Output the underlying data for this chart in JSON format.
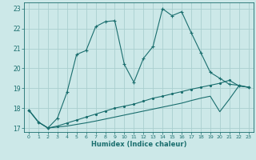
{
  "xlabel": "Humidex (Indice chaleur)",
  "bg_color": "#cce8e8",
  "grid_color": "#aacfcf",
  "line_color": "#1a6e6e",
  "xlim": [
    -0.5,
    23.5
  ],
  "ylim": [
    16.8,
    23.3
  ],
  "yticks": [
    17,
    18,
    19,
    20,
    21,
    22,
    23
  ],
  "xticks": [
    0,
    1,
    2,
    3,
    4,
    5,
    6,
    7,
    8,
    9,
    10,
    11,
    12,
    13,
    14,
    15,
    16,
    17,
    18,
    19,
    20,
    21,
    22,
    23
  ],
  "line1_x": [
    0,
    1,
    2,
    3,
    4,
    5,
    6,
    7,
    8,
    9,
    10,
    11,
    12,
    13,
    14,
    15,
    16,
    17,
    18,
    19,
    20,
    21,
    22,
    23
  ],
  "line1_y": [
    17.9,
    17.3,
    17.0,
    17.5,
    18.8,
    20.7,
    20.9,
    22.1,
    22.35,
    22.4,
    20.2,
    19.3,
    20.5,
    21.1,
    23.0,
    22.65,
    22.85,
    21.8,
    20.8,
    19.8,
    19.5,
    19.2,
    19.15,
    19.05
  ],
  "line2_x": [
    0,
    1,
    2,
    3,
    4,
    5,
    6,
    7,
    8,
    9,
    10,
    11,
    12,
    13,
    14,
    15,
    16,
    17,
    18,
    19,
    20,
    21,
    22,
    23
  ],
  "line2_y": [
    17.9,
    17.3,
    17.0,
    17.1,
    17.25,
    17.4,
    17.55,
    17.7,
    17.85,
    18.0,
    18.1,
    18.2,
    18.35,
    18.5,
    18.6,
    18.72,
    18.83,
    18.95,
    19.05,
    19.15,
    19.25,
    19.4,
    19.12,
    19.05
  ],
  "line3_x": [
    0,
    1,
    2,
    3,
    4,
    5,
    6,
    7,
    8,
    9,
    10,
    11,
    12,
    13,
    14,
    15,
    16,
    17,
    18,
    19,
    20,
    21,
    22,
    23
  ],
  "line3_y": [
    17.9,
    17.3,
    17.0,
    17.05,
    17.1,
    17.18,
    17.26,
    17.35,
    17.45,
    17.55,
    17.65,
    17.75,
    17.85,
    17.95,
    18.05,
    18.15,
    18.25,
    18.38,
    18.5,
    18.6,
    17.82,
    18.45,
    19.12,
    19.05
  ]
}
